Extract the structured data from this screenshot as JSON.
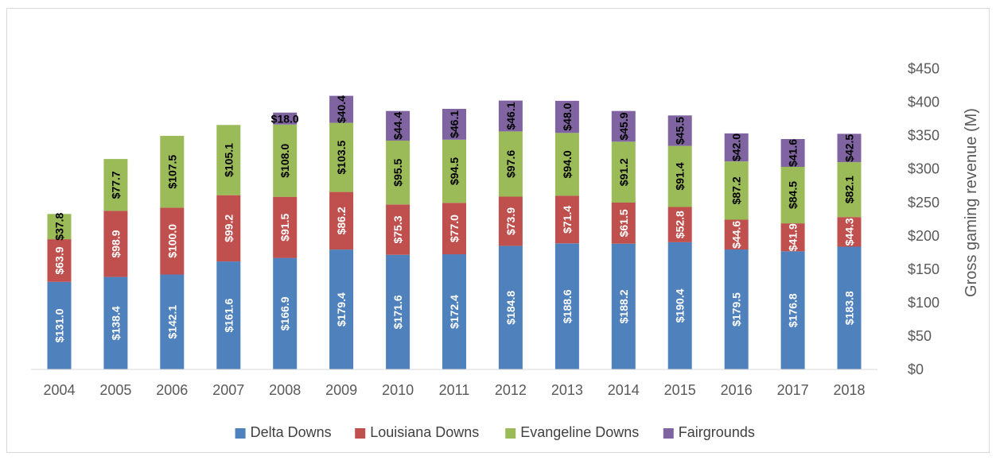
{
  "chart_data": {
    "type": "bar",
    "stacked": true,
    "title": "",
    "xlabel": "",
    "ylabel": "Gross gaming revenue (M)",
    "ylim": [
      0,
      450
    ],
    "ytick_step": 50,
    "ytick_prefix": "$",
    "y_axis_side": "right",
    "grid": false,
    "legend_position": "bottom",
    "categories": [
      "2004",
      "2005",
      "2006",
      "2007",
      "2008",
      "2009",
      "2010",
      "2011",
      "2012",
      "2013",
      "2014",
      "2015",
      "2016",
      "2017",
      "2018"
    ],
    "series": [
      {
        "name": "Delta Downs",
        "color": "#4f81bd",
        "label_color": "#ffffff",
        "values": [
          131.0,
          138.4,
          142.1,
          161.6,
          166.9,
          179.4,
          171.6,
          172.4,
          184.8,
          188.6,
          188.2,
          190.4,
          179.5,
          176.8,
          183.8
        ]
      },
      {
        "name": "Louisiana Downs",
        "color": "#c0504d",
        "label_color": "#ffffff",
        "values": [
          63.9,
          98.9,
          100.0,
          99.2,
          91.5,
          86.2,
          75.3,
          77.0,
          73.9,
          71.4,
          61.5,
          52.8,
          44.6,
          41.9,
          44.3
        ]
      },
      {
        "name": "Evangeline Downs",
        "color": "#9bbb59",
        "label_color": "#000000",
        "values": [
          37.8,
          77.7,
          107.5,
          105.1,
          108.0,
          103.5,
          95.5,
          94.5,
          97.6,
          94.0,
          91.2,
          91.4,
          87.2,
          84.5,
          82.1
        ]
      },
      {
        "name": "Fairgrounds",
        "color": "#8064a2",
        "label_color": "#000000",
        "values": [
          null,
          null,
          null,
          null,
          18.0,
          40.4,
          44.4,
          46.1,
          46.1,
          48.0,
          45.9,
          45.5,
          42.0,
          41.6,
          42.5
        ]
      }
    ]
  }
}
